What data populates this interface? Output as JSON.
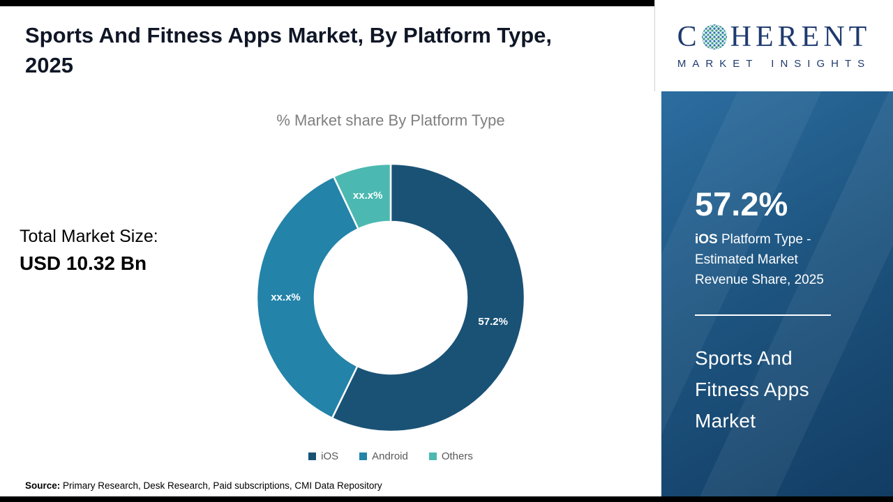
{
  "page": {
    "title": "Sports And Fitness Apps Market, By Platform Type, 2025"
  },
  "chart_data": {
    "type": "pie",
    "title": "% Market share By Platform Type",
    "categories": [
      "iOS",
      "Android",
      "Others"
    ],
    "values": [
      57.2,
      35.8,
      7.0
    ],
    "slice_labels": [
      "57.2%",
      "xx.x%",
      "xx.x%"
    ],
    "colors": [
      "#1a5276",
      "#2383a9",
      "#4bb9b1"
    ],
    "donut_hole_ratio": 0.57,
    "start_angle_deg": 0,
    "direction": "clockwise",
    "legend_position": "bottom"
  },
  "market_size": {
    "label": "Total Market Size:",
    "value": "USD 10.32 Bn"
  },
  "source": {
    "label": "Source:",
    "text": " Primary Research, Desk Research, Paid subscriptions, CMI Data Repository"
  },
  "sidebar": {
    "stat_value": "57.2%",
    "stat_platform": "iOS",
    "stat_description": " Platform Type - Estimated Market Revenue Share, 2025",
    "market_name": "Sports And Fitness Apps Market"
  },
  "logo": {
    "name_start": "C",
    "name_end": "HERENT",
    "tagline": "MARKET INSIGHTS"
  }
}
